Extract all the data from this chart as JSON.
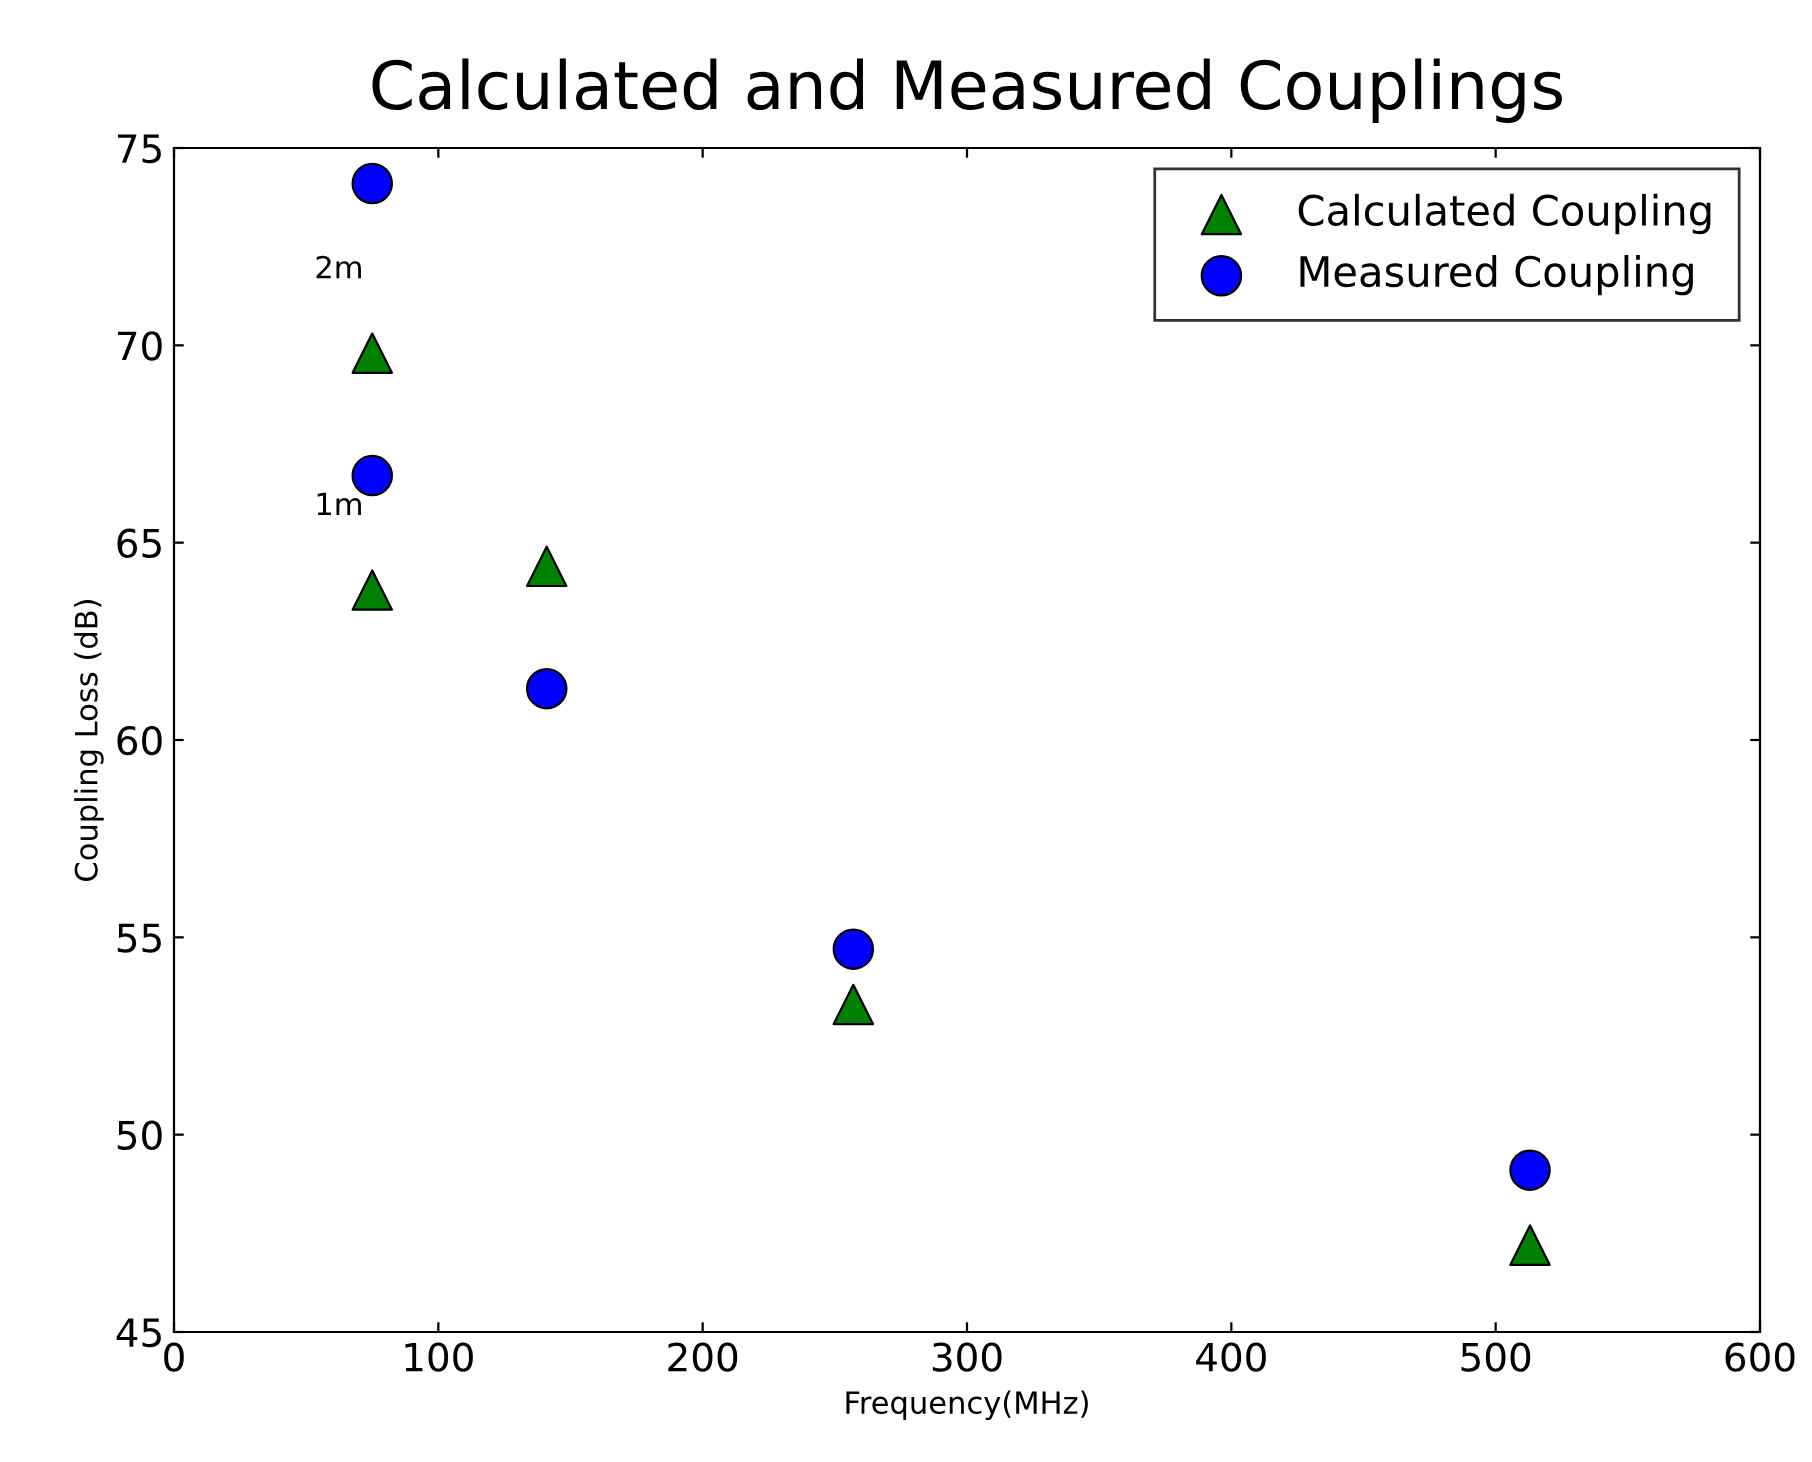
{
  "chart_data": {
    "type": "scatter",
    "title": "Calculated and Measured Couplings",
    "xlabel": "Frequency(MHz)",
    "ylabel": "Coupling Loss (dB)",
    "series": [
      {
        "name": "Calculated Coupling",
        "color": "#008000",
        "marker": "triangle",
        "x": [
          75,
          75,
          141,
          257,
          513
        ],
        "values": [
          69.8,
          63.8,
          64.4,
          53.3,
          47.2
        ]
      },
      {
        "name": "Measured Coupling",
        "color": "#0000ff",
        "marker": "circle",
        "x": [
          75,
          75,
          141,
          257,
          513
        ],
        "values": [
          74.1,
          66.7,
          61.3,
          54.7,
          49.1
        ]
      }
    ],
    "annotations": [
      {
        "text": "2m",
        "x": 75,
        "y": 69.8
      },
      {
        "text": "1m",
        "x": 75,
        "y": 63.8
      }
    ],
    "xlim": [
      0,
      600
    ],
    "xticks": [
      0,
      100,
      200,
      300,
      400,
      500,
      600
    ],
    "ylim": [
      45,
      75
    ],
    "yticks": [
      45,
      50,
      55,
      60,
      65,
      70,
      75
    ],
    "grid": false,
    "legend": "top right"
  }
}
